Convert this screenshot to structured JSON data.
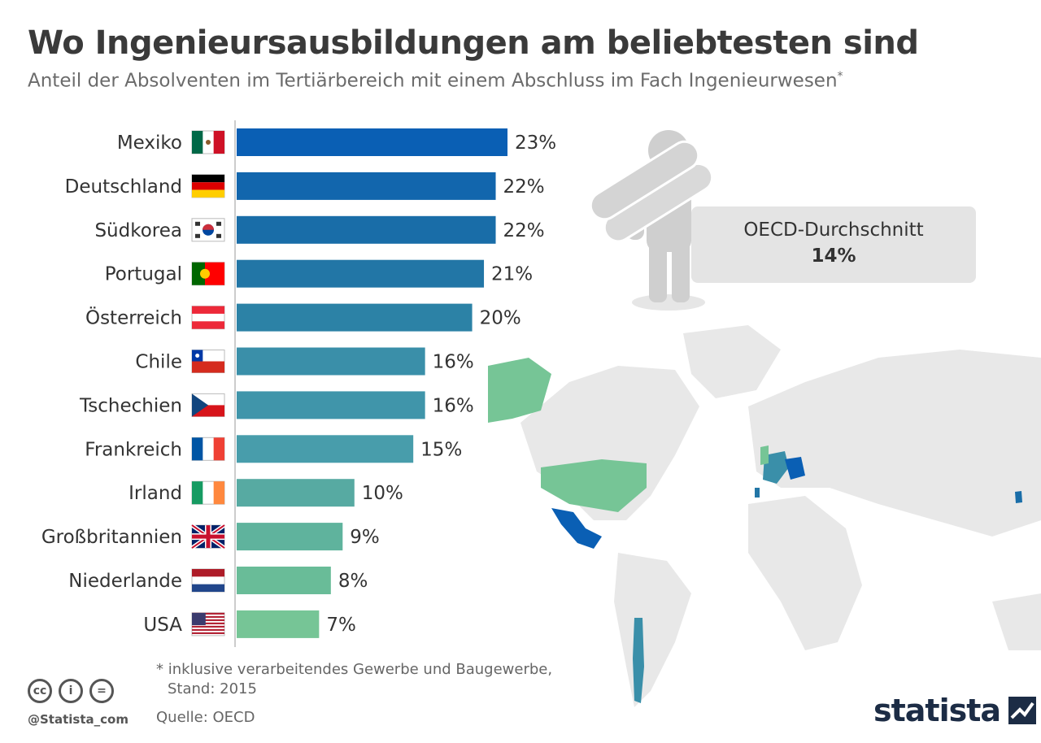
{
  "header": {
    "title": "Wo Ingenieursausbildungen am beliebtesten sind",
    "subtitle": "Anteil der Absolventen im Tertiärbereich mit einem Abschluss im Fach Ingenieurwesen",
    "subtitle_marker": "*"
  },
  "chart_data": {
    "type": "bar",
    "orientation": "horizontal",
    "categories": [
      "Mexiko",
      "Deutschland",
      "Südkorea",
      "Portugal",
      "Österreich",
      "Chile",
      "Tschechien",
      "Frankreich",
      "Irland",
      "Großbritannien",
      "Niederlande",
      "USA"
    ],
    "values": [
      23,
      22,
      22,
      21,
      20,
      16,
      16,
      15,
      10,
      9,
      8,
      7
    ],
    "value_labels": [
      "23%",
      "22%",
      "22%",
      "21%",
      "20%",
      "16%",
      "16%",
      "15%",
      "10%",
      "9%",
      "8%",
      "7%"
    ],
    "unit": "%",
    "bar_colors": [
      "#0a5fb4",
      "#1266ad",
      "#196da8",
      "#2276a6",
      "#2c82a6",
      "#3a8fa9",
      "#4095aa",
      "#489dab",
      "#57aaa2",
      "#5fb39d",
      "#69bc98",
      "#76c596"
    ],
    "flags": [
      "flag-mexico-icon",
      "flag-germany-icon",
      "flag-south-korea-icon",
      "flag-portugal-icon",
      "flag-austria-icon",
      "flag-chile-icon",
      "flag-czechia-icon",
      "flag-france-icon",
      "flag-ireland-icon",
      "flag-uk-icon",
      "flag-netherlands-icon",
      "flag-usa-icon"
    ],
    "xlim": [
      0,
      23
    ],
    "grid": false,
    "legend": "none"
  },
  "oecd": {
    "label": "OECD-Durchschnitt",
    "value": "14%"
  },
  "footer": {
    "footnote_line1": "* inklusive verarbeitendes Gewerbe und Baugewerbe,",
    "footnote_line2": "Stand: 2015",
    "source": "Quelle: OECD",
    "handle": "@Statista_com",
    "brand": "statista",
    "cc_icons": [
      "cc-icon",
      "by-icon",
      "nd-icon"
    ],
    "cc_glyphs": [
      "cc",
      "i",
      "="
    ]
  },
  "colors": {
    "map_land": "#e8e8e8",
    "map_highlight_dark": "#0a5fb4",
    "map_highlight_mid": "#3a8fa9",
    "map_highlight_light": "#76c596",
    "figure_gray": "#cfcfcf",
    "brand_navy": "#1c2c45"
  }
}
